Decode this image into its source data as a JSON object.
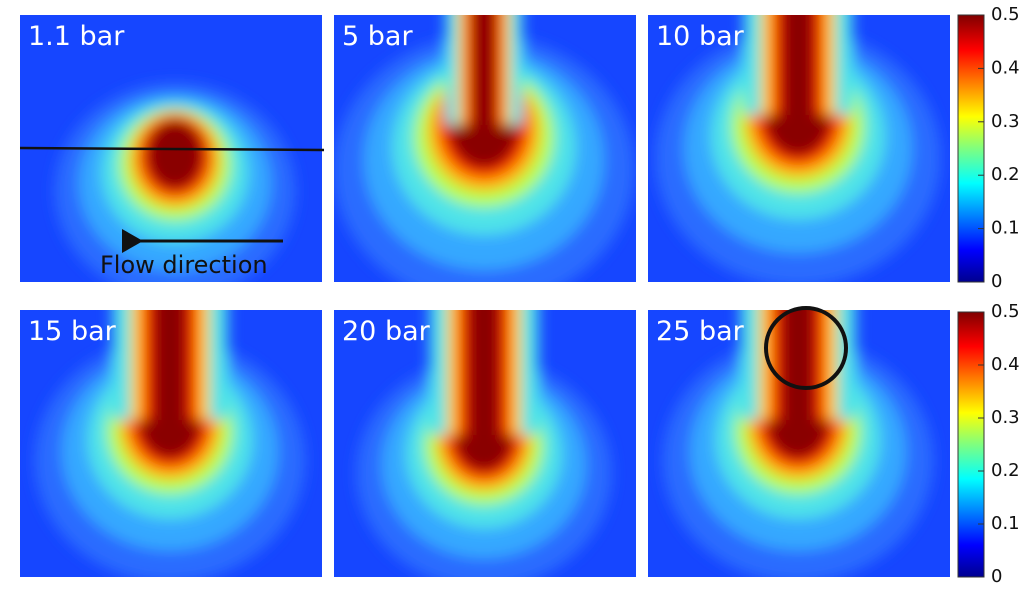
{
  "chart_data": {
    "type": "heatmap",
    "panels": [
      "1.1 bar",
      "5 bar",
      "10 bar",
      "15 bar",
      "20 bar",
      "25 bar"
    ],
    "annotation": "Flow direction",
    "colorbar": {
      "lim": [
        0,
        0.5
      ],
      "ticks": [
        0,
        0.1,
        0.2,
        0.3,
        0.4,
        0.5
      ]
    }
  }
}
